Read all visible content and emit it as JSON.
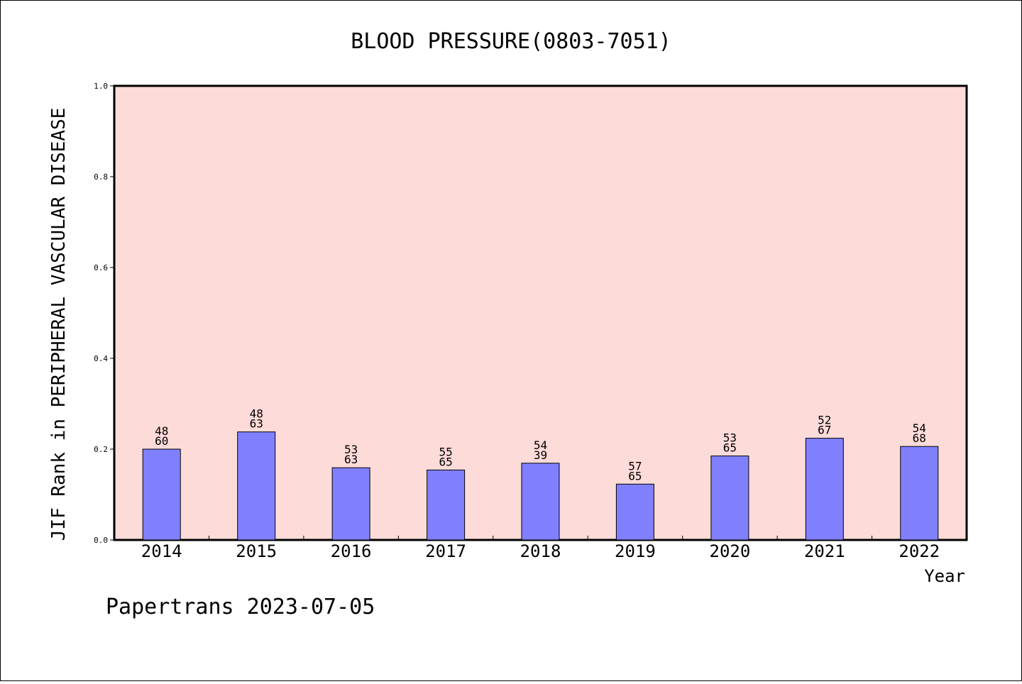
{
  "chart_data": {
    "type": "bar",
    "title": "BLOOD PRESSURE(0803-7051)",
    "xlabel": "Year",
    "ylabel": "JIF Rank in PERIPHERAL VASCULAR DISEASE",
    "ylim": [
      0,
      1.0
    ],
    "yticks": [
      "0.0",
      "0.2",
      "0.4",
      "0.6",
      "0.8",
      "1.0"
    ],
    "categories": [
      "2014",
      "2015",
      "2016",
      "2017",
      "2018",
      "2019",
      "2020",
      "2021",
      "2022"
    ],
    "values": [
      0.2,
      0.238,
      0.159,
      0.154,
      0.169,
      0.123,
      0.185,
      0.224,
      0.206
    ],
    "labels_top": [
      "48",
      "48",
      "53",
      "55",
      "54",
      "57",
      "53",
      "52",
      "54"
    ],
    "labels_bottom": [
      "60",
      "63",
      "63",
      "65",
      "39",
      "65",
      "65",
      "67",
      "68"
    ],
    "grid": false,
    "colors": {
      "plot_background": "#fddbd8",
      "bar_fill": "#8080ff",
      "bar_edge": "#000000"
    }
  },
  "footer": "Papertrans 2023-07-05"
}
